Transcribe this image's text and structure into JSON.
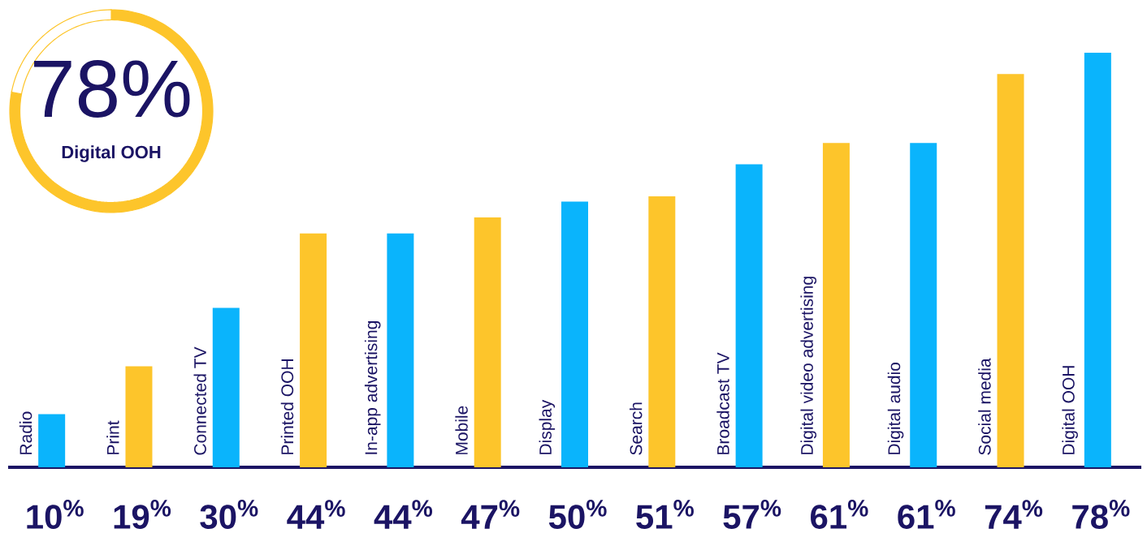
{
  "chart_data": [
    {
      "type": "donut",
      "categories": [
        "Digital OOH",
        null
      ],
      "values": [
        78,
        22
      ],
      "colors": [
        "#fdc52b",
        "#ffffff"
      ],
      "value_labels": [
        "78%",
        null
      ]
    },
    {
      "type": "bar",
      "categories": [
        "Radio",
        "Print",
        "Connected TV",
        "Printed OOH",
        "In-app advertising",
        "Mobile",
        "Display",
        "Search",
        "Broadcast TV",
        "Digital video advertising",
        "Digital audio",
        "Social media",
        "Digital OOH"
      ],
      "values": [
        10,
        19,
        30,
        44,
        44,
        47,
        50,
        51,
        57,
        61,
        61,
        74,
        78
      ],
      "colors": [
        "#0ab4fc",
        "#fdc52b",
        "#0ab4fc",
        "#fdc52b",
        "#0ab4fc",
        "#fdc52b",
        "#0ab4fc",
        "#fdc52b",
        "#0ab4fc",
        "#fdc52b",
        "#0ab4fc",
        "#fdc52b",
        "#0ab4fc"
      ],
      "value_labels": [
        "10$^{%}$",
        "19$^{%}$",
        "30$^{%}$",
        "44$^{%}$",
        "44$^{%}$",
        "47$^{%}$",
        "50$^{%}$",
        "51$^{%}$",
        "57$^{%}$",
        "61$^{%}$",
        "61$^{%}$",
        "74$^{%}$",
        "78$^{%}$"
      ]
    }
  ]
}
